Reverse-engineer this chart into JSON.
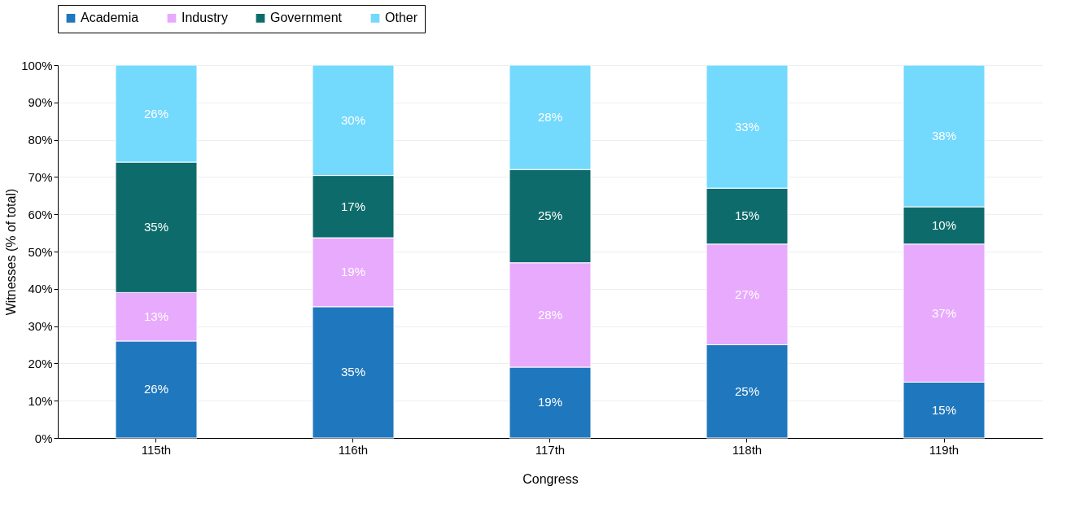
{
  "chart_data": {
    "type": "bar",
    "stacked": true,
    "xlabel": "Congress",
    "ylabel": "Witnesses (% of total)",
    "categories": [
      "115th",
      "116th",
      "117th",
      "118th",
      "119th"
    ],
    "series": [
      {
        "name": "Academia",
        "color": "#1f77bd",
        "values": [
          26,
          35.2,
          19,
          25,
          15
        ],
        "value_labels": [
          "26%",
          "35%",
          "19%",
          "25%",
          "15%"
        ]
      },
      {
        "name": "Industry",
        "color": "#e8aafd",
        "values": [
          13,
          18.5,
          28,
          27,
          37
        ],
        "value_labels": [
          "13%",
          "19%",
          "28%",
          "27%",
          "37%"
        ]
      },
      {
        "name": "Government",
        "color": "#0e6b6b",
        "values": [
          35,
          16.7,
          25,
          15,
          10
        ],
        "value_labels": [
          "35%",
          "17%",
          "25%",
          "15%",
          "10%"
        ]
      },
      {
        "name": "Other",
        "color": "#73d9fd",
        "values": [
          26,
          29.6,
          28,
          33,
          38
        ],
        "value_labels": [
          "26%",
          "30%",
          "28%",
          "33%",
          "38%"
        ]
      }
    ],
    "ylim": [
      0,
      100
    ],
    "yticks": [
      {
        "value": 0,
        "label": "0%"
      },
      {
        "value": 10,
        "label": "10%"
      },
      {
        "value": 20,
        "label": "20%"
      },
      {
        "value": 30,
        "label": "30%"
      },
      {
        "value": 40,
        "label": "40%"
      },
      {
        "value": 50,
        "label": "50%"
      },
      {
        "value": 60,
        "label": "60%"
      },
      {
        "value": 70,
        "label": "70%"
      },
      {
        "value": 80,
        "label": "80%"
      },
      {
        "value": 90,
        "label": "90%"
      },
      {
        "value": 100,
        "label": "100%"
      }
    ],
    "grid": true,
    "legend": "top left"
  }
}
